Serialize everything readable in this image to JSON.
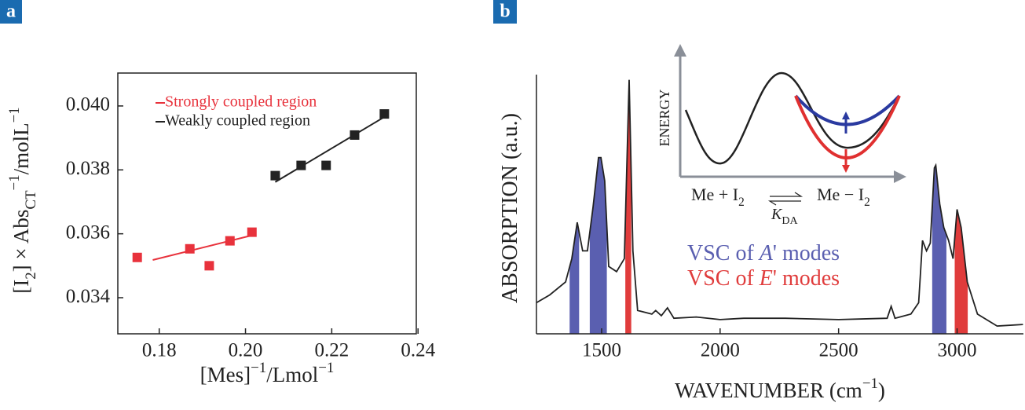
{
  "chart_data": [
    {
      "type": "scatter",
      "panel_label": "a",
      "xlabel": [
        {
          "text": "[Mes]"
        },
        {
          "text": "−1",
          "shift": "sup"
        },
        {
          "text": "/Lmol"
        },
        {
          "text": "−1",
          "shift": "sup"
        }
      ],
      "ylabel": [
        {
          "text": "[I"
        },
        {
          "text": "2",
          "shift": "sub"
        },
        {
          "text": "] × Abs"
        },
        {
          "text": "CT",
          "shift": "sub"
        },
        {
          "text": "−1",
          "shift": "sup"
        },
        {
          "text": "/molL"
        },
        {
          "text": "−1",
          "shift": "sup"
        }
      ],
      "xlim": [
        0.1704,
        0.2396
      ],
      "ylim": [
        0.03287,
        0.04103
      ],
      "xticks": [
        0.18,
        {
          "value": 0.2,
          "label": "0.20"
        },
        0.22,
        0.24
      ],
      "yticks": [
        0.034,
        0.036,
        0.038,
        {
          "value": 0.04,
          "label": "0.040"
        }
      ],
      "series": [
        {
          "name": "Strongly coupled region",
          "color": "#e8323c",
          "x": [
            0.1749,
            0.1871,
            0.1916,
            0.1964,
            0.2015
          ],
          "values": [
            0.03526,
            0.03553,
            0.035,
            0.03578,
            0.03605
          ],
          "fit": {
            "x": [
              0.1785,
              0.2018
            ],
            "y": [
              0.03518,
              0.03596
            ]
          }
        },
        {
          "name": "Weakly coupled region",
          "color": "#222222",
          "x": [
            0.2069,
            0.2129,
            0.2187,
            0.2253,
            0.2322
          ],
          "values": [
            0.03782,
            0.03814,
            0.03814,
            0.03909,
            0.03975
          ],
          "fit": {
            "x": [
              0.2069,
              0.2325
            ],
            "y": [
              0.03762,
              0.03968
            ]
          }
        }
      ]
    },
    {
      "type": "line",
      "panel_label": "b",
      "xlabel": [
        {
          "text": "WAVENUMBER (cm"
        },
        {
          "text": "−1",
          "shift": "sup"
        },
        {
          "text": ")"
        }
      ],
      "ylabel": [
        {
          "text": "ABSORPTION (a.u.)"
        }
      ],
      "xlim": [
        1225,
        3280
      ],
      "ylim": [
        0,
        100
      ],
      "xticks": [
        1500,
        2000,
        2500,
        3000
      ],
      "series": [
        {
          "color": "#222222",
          "x": [
            1225,
            1281,
            1348,
            1374,
            1397,
            1420,
            1440,
            1464,
            1487,
            1497,
            1513,
            1530,
            1563,
            1596,
            1616,
            1632,
            1652,
            1712,
            1728,
            1752,
            1778,
            1805,
            1900,
            2000,
            2100,
            2275,
            2500,
            2705,
            2722,
            2738,
            2805,
            2838,
            2854,
            2871,
            2887,
            2904,
            2910,
            2927,
            2944,
            2964,
            2983,
            3000,
            3017,
            3043,
            3086,
            3169,
            3278
          ],
          "values": [
            12,
            15,
            20,
            29,
            43,
            32,
            32,
            49,
            68,
            68,
            59,
            26,
            24,
            29,
            98,
            32,
            9,
            7.6,
            9,
            7,
            10,
            6,
            6.5,
            5.5,
            6,
            6,
            5.5,
            6,
            10.6,
            6,
            7.6,
            12,
            36,
            32,
            35,
            64,
            65,
            50,
            41,
            36,
            29,
            48,
            41,
            20,
            7.6,
            3,
            3.6
          ]
        }
      ],
      "bands": [
        {
          "name": [
            {
              "text": "VSC of "
            },
            {
              "text": "A",
              "shift": "italic"
            },
            {
              "text": "' modes"
            }
          ],
          "color": "#5a5fb0",
          "ranges": [
            [
              1365,
              1405
            ],
            [
              1450,
              1522
            ],
            [
              2895,
              2955
            ]
          ]
        },
        {
          "name": [
            {
              "text": "VSC of "
            },
            {
              "text": "E",
              "shift": "italic"
            },
            {
              "text": "' modes"
            }
          ],
          "color": "#e03c3c",
          "ranges": [
            [
              1600,
              1625
            ],
            [
              2990,
              3045
            ]
          ]
        }
      ],
      "inset": {
        "ylabel": "ENERGY",
        "reactant": [
          {
            "text": "Me + I"
          },
          {
            "text": "2",
            "shift": "sub"
          }
        ],
        "product": [
          {
            "text": "Me − I"
          },
          {
            "text": "2",
            "shift": "sub"
          }
        ],
        "constant": [
          {
            "text": "K",
            "shift": "italic"
          },
          {
            "text": "DA",
            "shift": "sub"
          }
        ]
      }
    }
  ]
}
